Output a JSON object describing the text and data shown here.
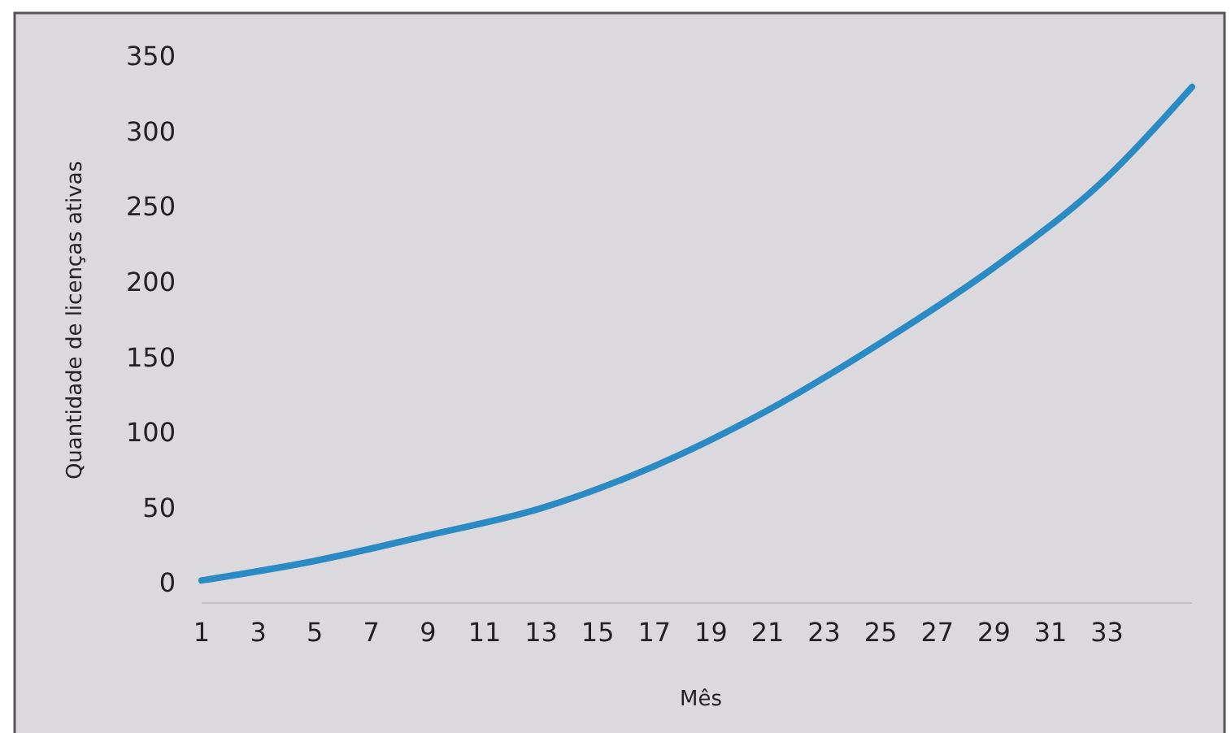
{
  "chart_data": {
    "type": "line",
    "xlabel": "Mês",
    "ylabel": "Quantidade de licenças ativas",
    "x": [
      1,
      5,
      9,
      13,
      17,
      21,
      25,
      29,
      33,
      36
    ],
    "series": [
      {
        "color": "#2a8bc4",
        "values": [
          2,
          15,
          32,
          50,
          78,
          115,
          160,
          210,
          270,
          330
        ]
      }
    ],
    "xlim": [
      1,
      36
    ],
    "xticks": [
      1,
      3,
      5,
      7,
      9,
      11,
      13,
      15,
      17,
      19,
      21,
      23,
      25,
      27,
      29,
      31,
      33
    ],
    "ylim": [
      0,
      350
    ],
    "yticks": [
      0,
      50,
      100,
      150,
      200,
      250,
      300,
      350
    ],
    "grid": false
  }
}
